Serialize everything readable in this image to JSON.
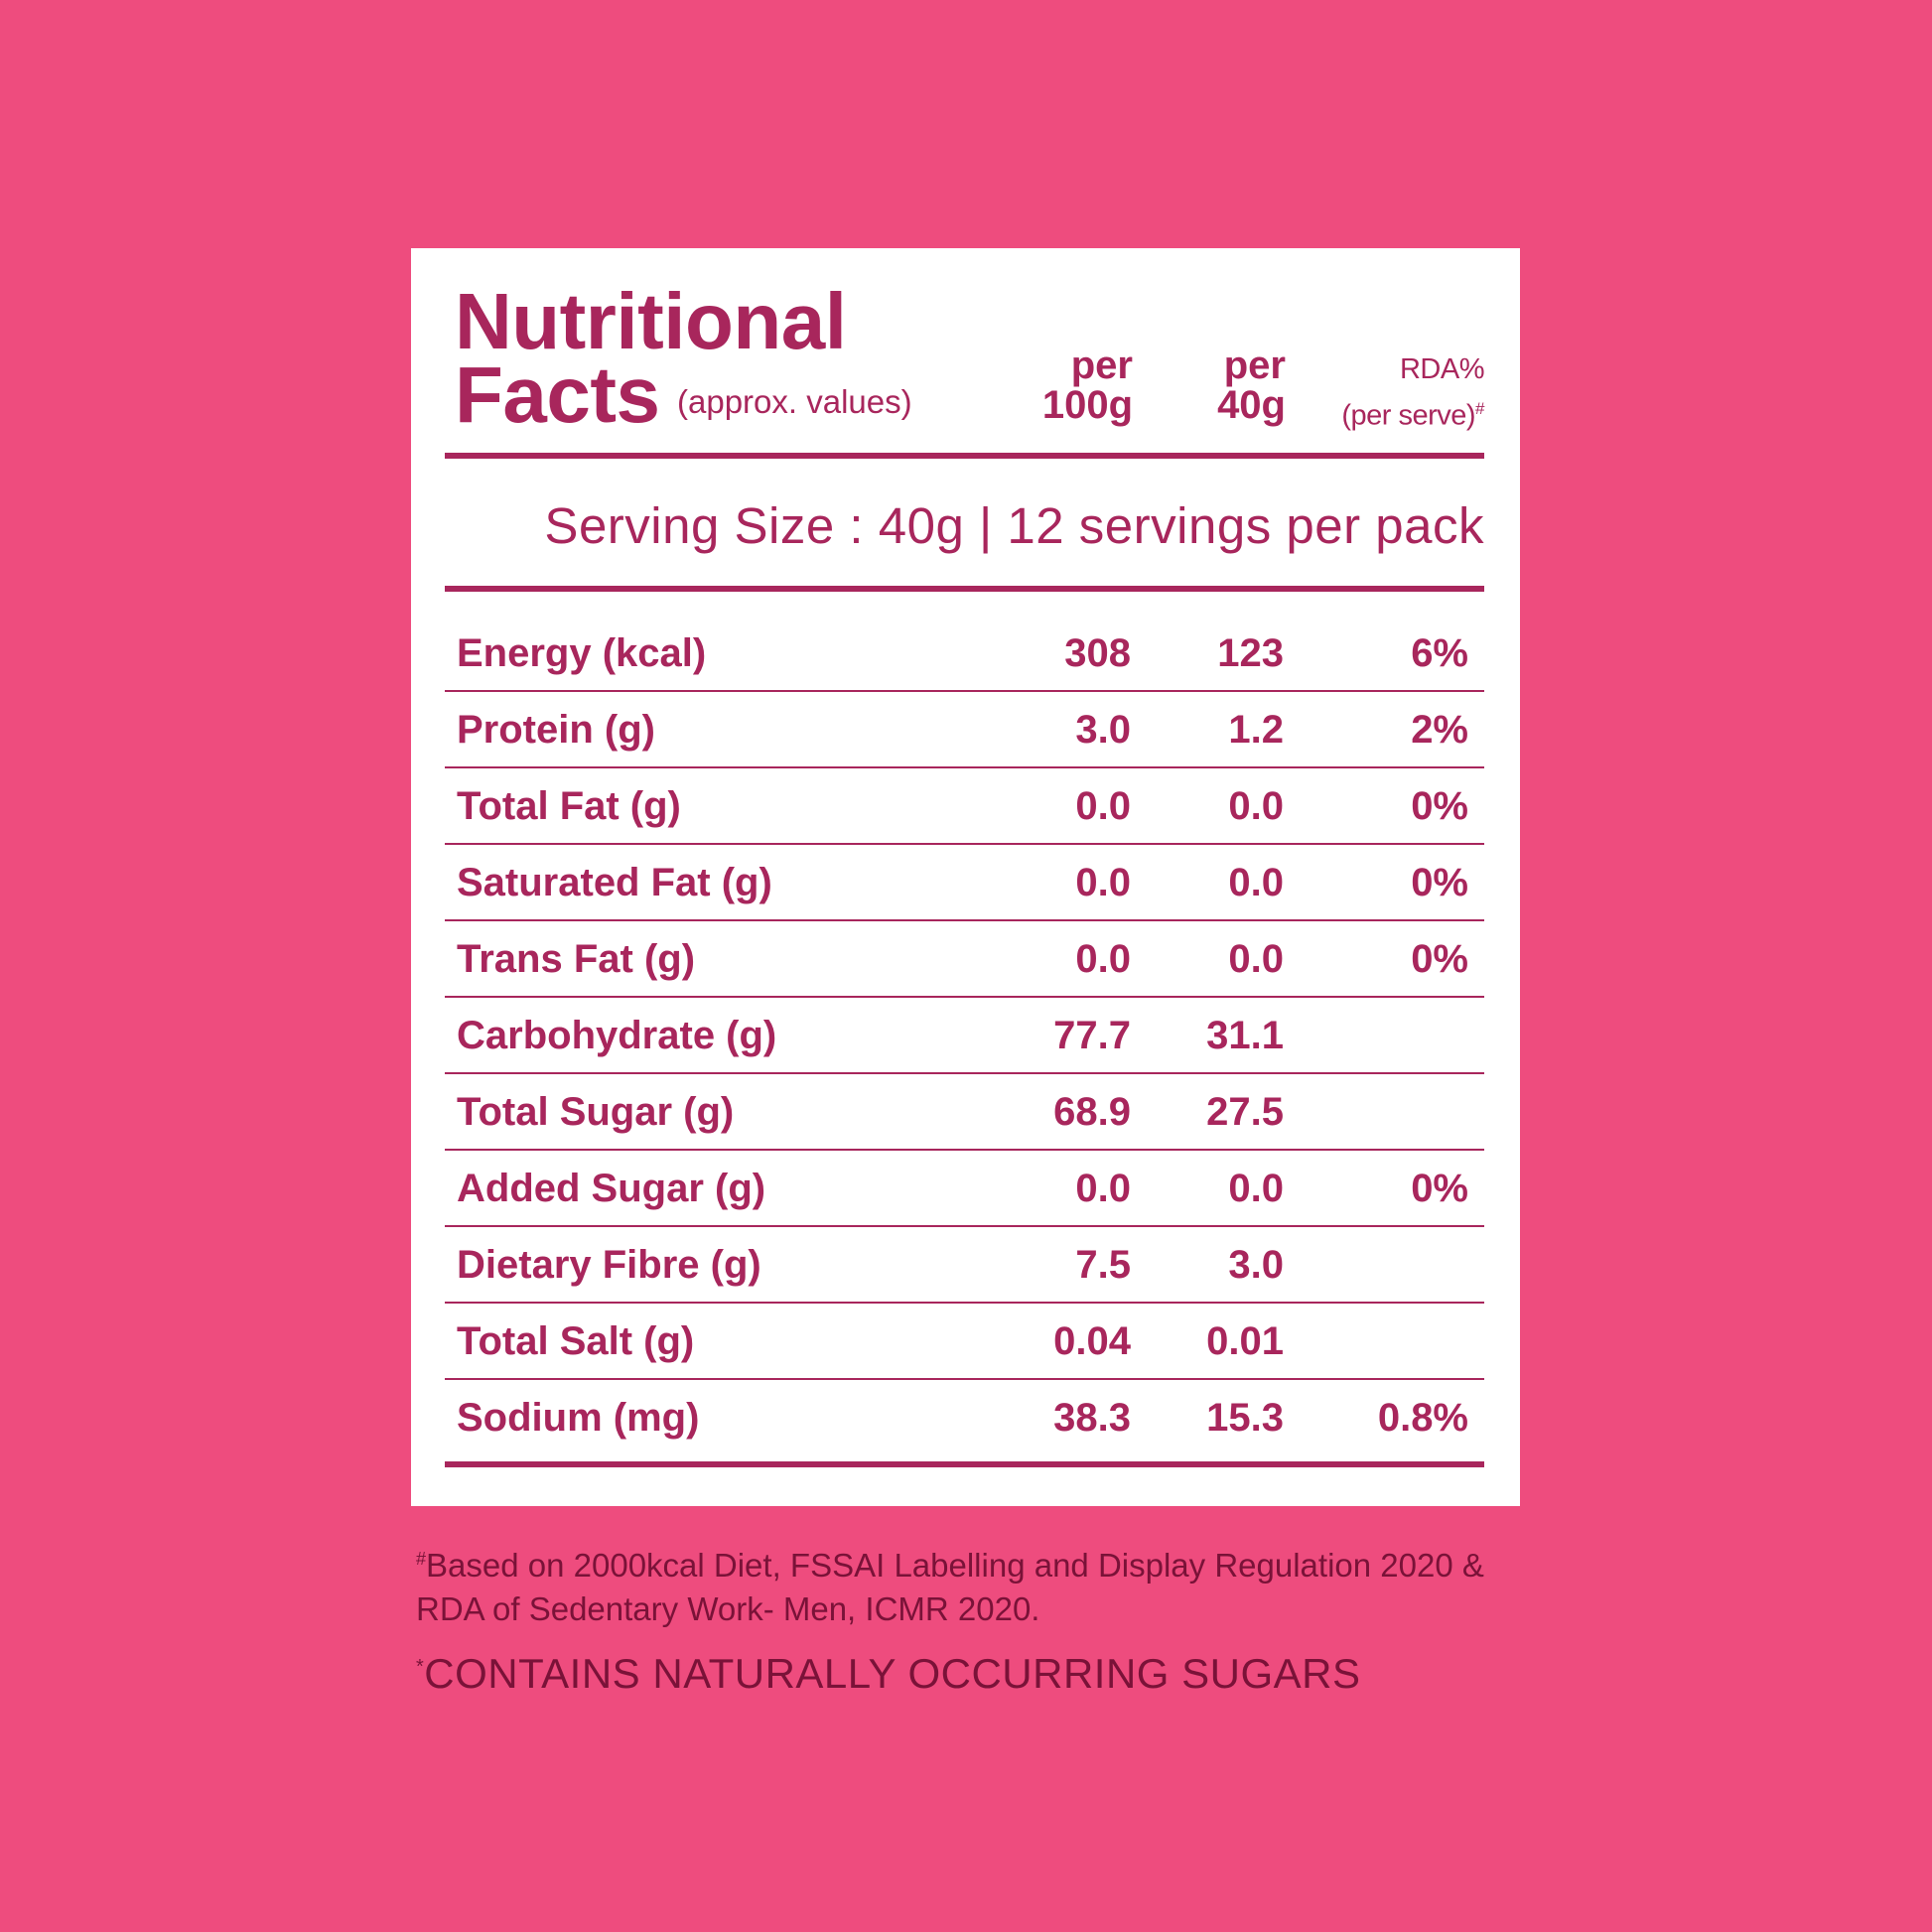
{
  "panel": {
    "title_line1": "Nutritional",
    "title_line2": "Facts",
    "subtitle": "(approx. values)",
    "col_100g_top": "per",
    "col_100g_bottom": "100g",
    "col_40g_top": "per",
    "col_40g_bottom": "40g",
    "col_rda_top": "RDA%",
    "col_rda_bottom": "(per serve)",
    "col_rda_mark": "#",
    "serving": "Serving Size : 40g  | 12 servings per pack"
  },
  "rows": [
    {
      "label": "Energy (kcal)",
      "per100g": "308",
      "per40g": "123",
      "rda": "6%"
    },
    {
      "label": "Protein (g)",
      "per100g": "3.0",
      "per40g": "1.2",
      "rda": "2%"
    },
    {
      "label": "Total Fat (g)",
      "per100g": "0.0",
      "per40g": "0.0",
      "rda": "0%"
    },
    {
      "label": "Saturated Fat (g)",
      "per100g": "0.0",
      "per40g": "0.0",
      "rda": "0%"
    },
    {
      "label": "Trans Fat (g)",
      "per100g": "0.0",
      "per40g": "0.0",
      "rda": "0%"
    },
    {
      "label": "Carbohydrate (g)",
      "per100g": "77.7",
      "per40g": "31.1",
      "rda": ""
    },
    {
      "label": "Total Sugar (g)",
      "per100g": "68.9",
      "per40g": "27.5",
      "rda": ""
    },
    {
      "label": "Added Sugar (g)",
      "per100g": "0.0",
      "per40g": "0.0",
      "rda": "0%"
    },
    {
      "label": "Dietary Fibre (g)",
      "per100g": "7.5",
      "per40g": "3.0",
      "rda": ""
    },
    {
      "label": "Total Salt (g)",
      "per100g": "0.04",
      "per40g": "0.01",
      "rda": ""
    },
    {
      "label": "Sodium (mg)",
      "per100g": "38.3",
      "per40g": "15.3",
      "rda": "0.8%"
    }
  ],
  "footnote": {
    "mark": "#",
    "text": "Based on 2000kcal Diet, FSSAI Labelling and Display Regulation 2020 & RDA of Sedentary Work- Men, ICMR 2020."
  },
  "contains": {
    "mark": "*",
    "text": "CONTAINS NATURALLY OCCURRING SUGARS"
  },
  "colors": {
    "background": "#ee4c7e",
    "panel": "#ffffff",
    "text": "#a8265c",
    "footnote_text": "#7a1238"
  }
}
